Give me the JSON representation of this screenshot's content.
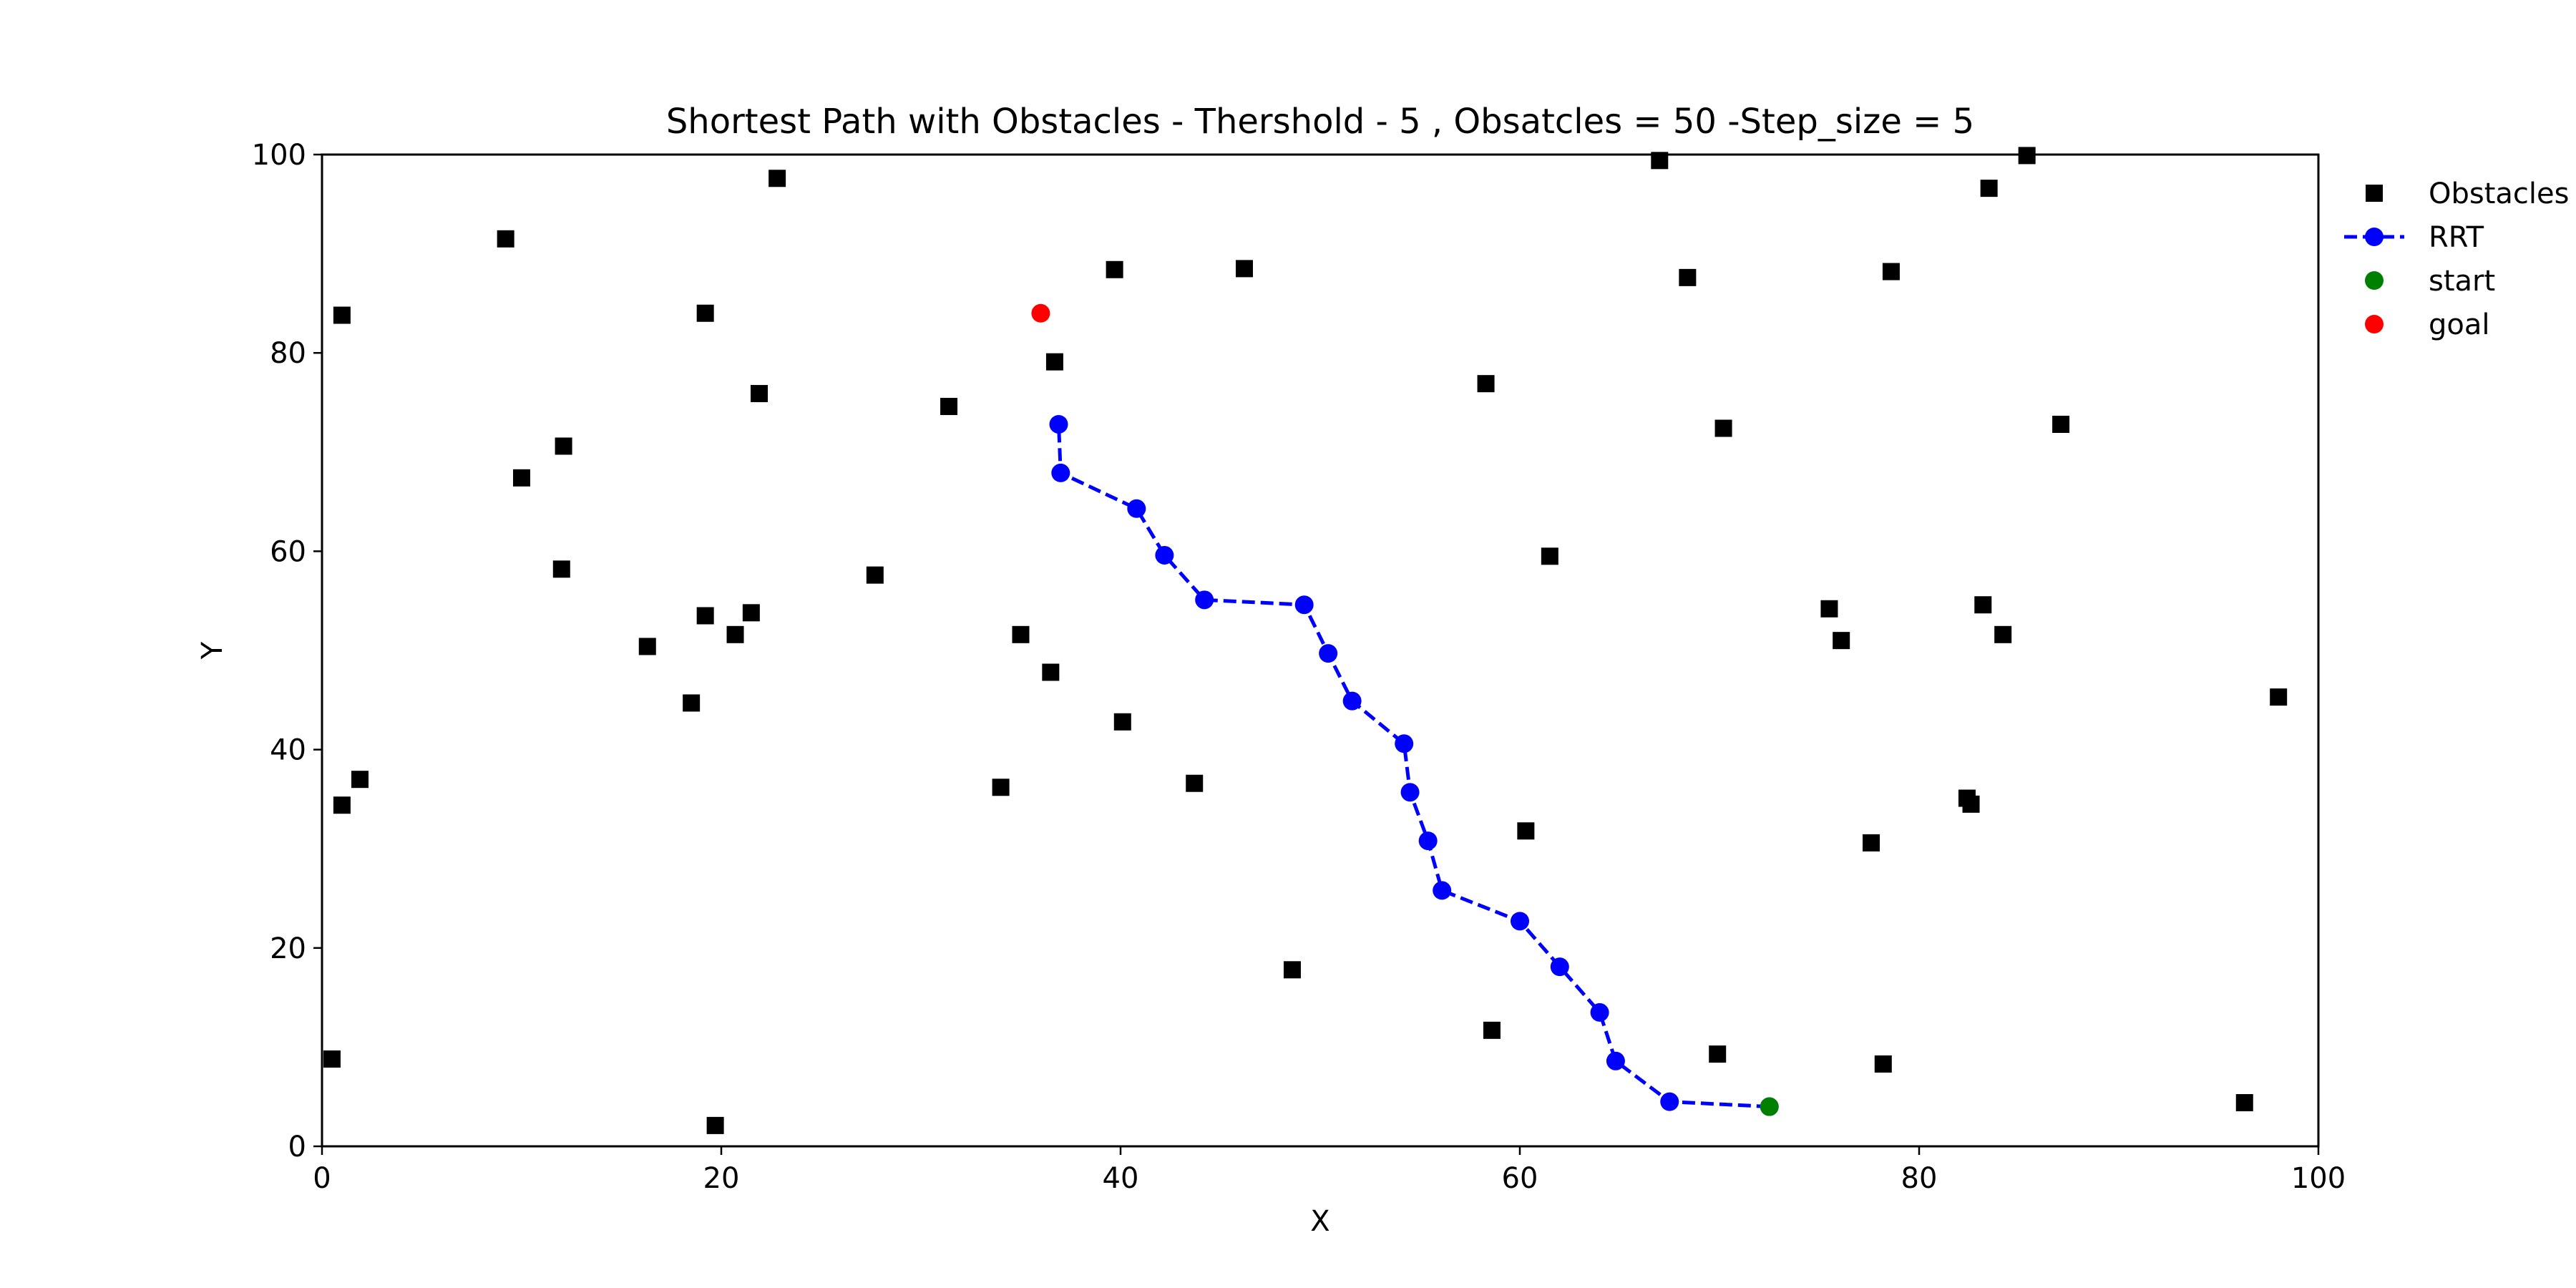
{
  "chart_data": {
    "type": "scatter",
    "title": "Shortest Path with Obstacles - Thershold - 5 , Obsatcles = 50 -Step_size = 5",
    "xlabel": "X",
    "ylabel": "Y",
    "xlim": [
      0,
      100
    ],
    "ylim": [
      0,
      100
    ],
    "xticks": [
      0,
      20,
      40,
      60,
      80,
      100
    ],
    "yticks": [
      0,
      20,
      40,
      60,
      80,
      100
    ],
    "grid": false,
    "legend_position": "outside upper right",
    "series": [
      {
        "name": "Obstacles",
        "marker": "square",
        "color": "#000000",
        "points": [
          [
            0.5,
            8.8
          ],
          [
            1.0,
            83.8
          ],
          [
            1.0,
            34.4
          ],
          [
            1.9,
            37.0
          ],
          [
            9.2,
            91.5
          ],
          [
            10.0,
            67.4
          ],
          [
            12.1,
            70.6
          ],
          [
            12.0,
            58.2
          ],
          [
            16.3,
            50.4
          ],
          [
            18.5,
            44.7
          ],
          [
            19.2,
            84.0
          ],
          [
            19.2,
            53.5
          ],
          [
            19.7,
            2.1
          ],
          [
            20.7,
            51.6
          ],
          [
            21.5,
            53.8
          ],
          [
            21.9,
            75.9
          ],
          [
            22.8,
            97.6
          ],
          [
            27.7,
            57.6
          ],
          [
            31.4,
            74.6
          ],
          [
            34.0,
            36.2
          ],
          [
            35.0,
            51.6
          ],
          [
            36.5,
            47.8
          ],
          [
            36.7,
            79.1
          ],
          [
            39.7,
            88.4
          ],
          [
            40.1,
            42.8
          ],
          [
            43.7,
            36.6
          ],
          [
            46.2,
            88.5
          ],
          [
            48.6,
            17.8
          ],
          [
            58.3,
            76.9
          ],
          [
            58.6,
            11.7
          ],
          [
            60.3,
            31.8
          ],
          [
            61.5,
            59.5
          ],
          [
            67.0,
            99.4
          ],
          [
            68.4,
            87.6
          ],
          [
            69.9,
            9.3
          ],
          [
            70.2,
            72.4
          ],
          [
            75.5,
            54.2
          ],
          [
            76.1,
            51.0
          ],
          [
            77.6,
            30.6
          ],
          [
            78.2,
            8.3
          ],
          [
            78.6,
            88.2
          ],
          [
            82.4,
            35.1
          ],
          [
            82.6,
            34.5
          ],
          [
            83.2,
            54.6
          ],
          [
            83.5,
            96.6
          ],
          [
            84.2,
            51.6
          ],
          [
            85.4,
            99.9
          ],
          [
            87.1,
            72.8
          ],
          [
            96.3,
            4.4
          ],
          [
            98.0,
            45.3
          ]
        ]
      },
      {
        "name": "RRT",
        "marker": "circle",
        "line": "dashed",
        "color": "#0000ff",
        "points": [
          [
            72.5,
            4.0
          ],
          [
            67.5,
            4.5
          ],
          [
            64.8,
            8.6
          ],
          [
            64.0,
            13.5
          ],
          [
            62.0,
            18.1
          ],
          [
            60.0,
            22.7
          ],
          [
            56.1,
            25.8
          ],
          [
            55.4,
            30.8
          ],
          [
            54.5,
            35.7
          ],
          [
            54.2,
            40.6
          ],
          [
            51.6,
            44.9
          ],
          [
            50.4,
            49.7
          ],
          [
            49.2,
            54.6
          ],
          [
            44.2,
            55.1
          ],
          [
            42.2,
            59.6
          ],
          [
            40.8,
            64.3
          ],
          [
            37.0,
            67.9
          ],
          [
            36.9,
            72.8
          ]
        ]
      },
      {
        "name": "start",
        "marker": "circle",
        "color": "#008000",
        "points": [
          [
            72.5,
            4.0
          ]
        ]
      },
      {
        "name": "goal",
        "marker": "circle",
        "color": "#ff0000",
        "points": [
          [
            36.0,
            84.0
          ]
        ]
      }
    ]
  }
}
